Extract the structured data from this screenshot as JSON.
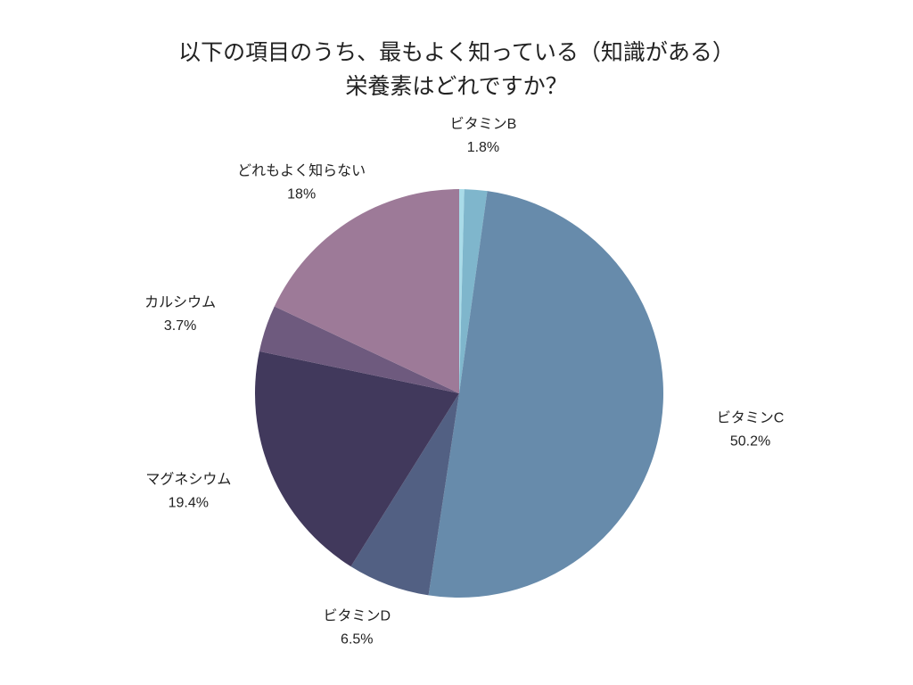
{
  "chart_data": {
    "type": "pie",
    "title_lines": [
      "以下の項目のうち、最もよく知っている（知識がある）",
      "栄養素はどれですか？"
    ],
    "start": "top",
    "direction": "clockwise",
    "slices": [
      {
        "label": "",
        "value": 0.4,
        "value_label": "",
        "color": "#a9dbe8"
      },
      {
        "label": "ビタミンB",
        "value": 1.8,
        "value_label": "1.8%",
        "color": "#7fb6cc"
      },
      {
        "label": "ビタミンC",
        "value": 50.2,
        "value_label": "50.2%",
        "color": "#678bab"
      },
      {
        "label": "ビタミンD",
        "value": 6.5,
        "value_label": "6.5%",
        "color": "#526083"
      },
      {
        "label": "マグネシウム",
        "value": 19.4,
        "value_label": "19.4%",
        "color": "#41395c"
      },
      {
        "label": "カルシウム",
        "value": 3.7,
        "value_label": "3.7%",
        "color": "#6e5a7e"
      },
      {
        "label": "どれもよく知らない",
        "value": 18,
        "value_label": "18%",
        "color": "#9d7a98"
      }
    ]
  }
}
